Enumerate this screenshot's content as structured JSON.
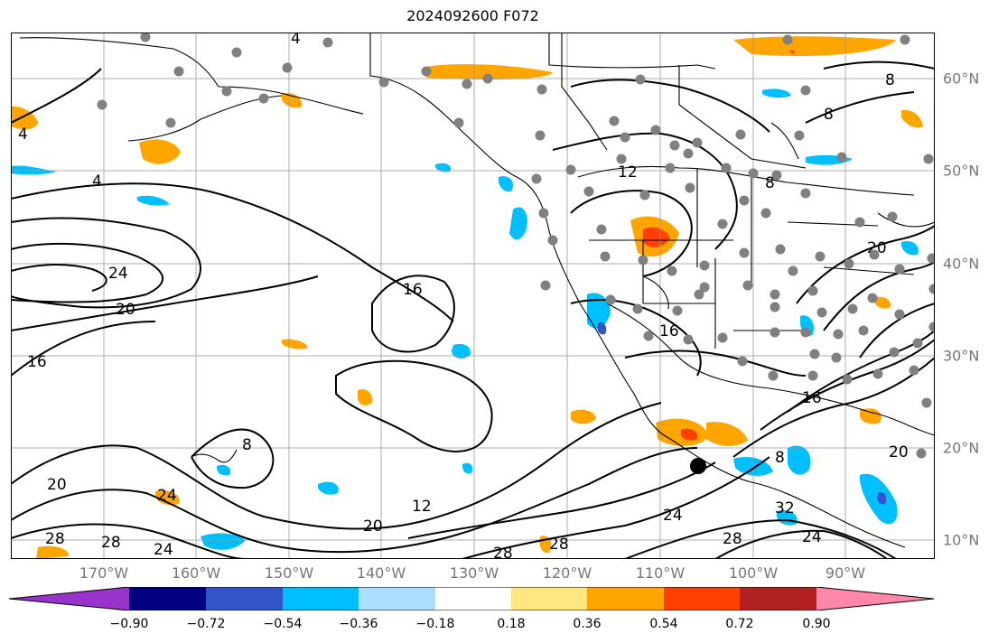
{
  "title": "2024092600 F072",
  "colors": {
    "land_outline": "#000000",
    "contour": "#000000",
    "grid": "#999999",
    "station": "#808080",
    "storm_center": "#000000"
  },
  "longitude_labels": [
    "170°W",
    "160°W",
    "150°W",
    "140°W",
    "130°W",
    "120°W",
    "110°W",
    "100°W",
    "90°W"
  ],
  "latitude_labels": [
    "60°N",
    "50°N",
    "40°N",
    "30°N",
    "20°N",
    "10°N"
  ],
  "contour_labels": [
    {
      "text": "4"
    },
    {
      "text": "4"
    },
    {
      "text": "4"
    },
    {
      "text": "8"
    },
    {
      "text": "8"
    },
    {
      "text": "8"
    },
    {
      "text": "8"
    },
    {
      "text": "12"
    },
    {
      "text": "12"
    },
    {
      "text": "16"
    },
    {
      "text": "16"
    },
    {
      "text": "16"
    },
    {
      "text": "16"
    },
    {
      "text": "20"
    },
    {
      "text": "20"
    },
    {
      "text": "20"
    },
    {
      "text": "20"
    },
    {
      "text": "24"
    },
    {
      "text": "24"
    },
    {
      "text": "24"
    },
    {
      "text": "24"
    },
    {
      "text": "24"
    },
    {
      "text": "28"
    },
    {
      "text": "28"
    },
    {
      "text": "28"
    },
    {
      "text": "28"
    },
    {
      "text": "28"
    },
    {
      "text": "32"
    },
    {
      "text": "20"
    },
    {
      "text": "8"
    }
  ],
  "colorbar": {
    "colors": [
      "#9933cc",
      "#000080",
      "#3355cc",
      "#00bfff",
      "#aadfff",
      "#ffffff",
      "#ffe680",
      "#ffa500",
      "#ff4000",
      "#b22222",
      "#ff88aa"
    ],
    "tick_labels": [
      "−0.90",
      "−0.72",
      "−0.54",
      "−0.36",
      "−0.18",
      "0.18",
      "0.36",
      "0.54",
      "0.72",
      "0.90"
    ]
  }
}
